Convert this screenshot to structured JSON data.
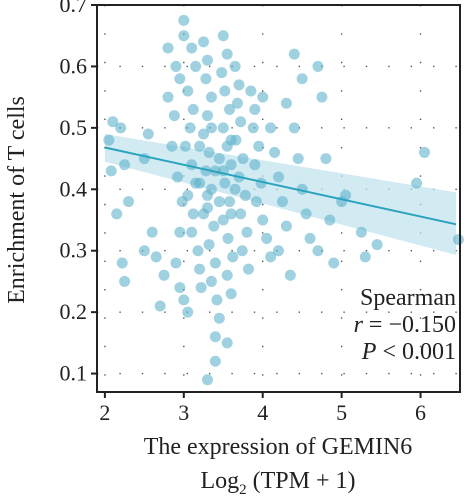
{
  "chart_data": {
    "type": "scatter",
    "xlabel": "The expression of GEMIN6",
    "xlabel_line2": {
      "prefix": "Log",
      "subscript": "2",
      "suffix": " (TPM + 1)"
    },
    "ylabel": "Enrichment of T cells",
    "xlim": [
      1.9,
      6.5
    ],
    "ylim": [
      0.07,
      0.7
    ],
    "xticks": [
      2,
      3,
      4,
      5,
      6
    ],
    "yticks": [
      0.1,
      0.2,
      0.3,
      0.4,
      0.5,
      0.6,
      0.7
    ],
    "xtick_labels": [
      "2",
      "3",
      "4",
      "5",
      "6"
    ],
    "ytick_labels": [
      "0.1",
      "0.2",
      "0.3",
      "0.4",
      "0.5",
      "0.6",
      "0.7"
    ],
    "grid": "dotted",
    "point_color": "#5fb3cb",
    "line_color": "#2aa3bf",
    "band_color": "#bfe2ec",
    "regression": {
      "x": [
        2.0,
        6.45
      ],
      "y": [
        0.468,
        0.343
      ],
      "ci_upper": [
        0.49,
        0.395
      ],
      "ci_lower": [
        0.445,
        0.293
      ]
    },
    "stats": {
      "method": "Spearman",
      "r_symbol": "r",
      "r_value": " = −0.150",
      "p_symbol": "P",
      "p_value": " < 0.001"
    },
    "points": [
      [
        3.0,
        0.675
      ],
      [
        2.05,
        0.48
      ],
      [
        2.1,
        0.51
      ],
      [
        2.08,
        0.43
      ],
      [
        2.2,
        0.5
      ],
      [
        2.25,
        0.44
      ],
      [
        2.15,
        0.36
      ],
      [
        2.3,
        0.38
      ],
      [
        2.22,
        0.28
      ],
      [
        2.25,
        0.25
      ],
      [
        2.5,
        0.45
      ],
      [
        2.55,
        0.49
      ],
      [
        2.6,
        0.33
      ],
      [
        2.65,
        0.29
      ],
      [
        2.5,
        0.3
      ],
      [
        2.7,
        0.21
      ],
      [
        2.75,
        0.26
      ],
      [
        2.8,
        0.55
      ],
      [
        2.9,
        0.6
      ],
      [
        2.95,
        0.58
      ],
      [
        2.88,
        0.52
      ],
      [
        2.85,
        0.47
      ],
      [
        2.92,
        0.42
      ],
      [
        2.98,
        0.38
      ],
      [
        2.95,
        0.33
      ],
      [
        2.9,
        0.28
      ],
      [
        2.95,
        0.24
      ],
      [
        3.0,
        0.22
      ],
      [
        3.05,
        0.2
      ],
      [
        3.1,
        0.63
      ],
      [
        3.15,
        0.6
      ],
      [
        3.05,
        0.56
      ],
      [
        3.12,
        0.53
      ],
      [
        3.08,
        0.5
      ],
      [
        3.02,
        0.47
      ],
      [
        3.1,
        0.44
      ],
      [
        3.15,
        0.41
      ],
      [
        3.05,
        0.39
      ],
      [
        3.12,
        0.36
      ],
      [
        3.1,
        0.33
      ],
      [
        3.18,
        0.3
      ],
      [
        3.2,
        0.27
      ],
      [
        3.22,
        0.24
      ],
      [
        3.25,
        0.64
      ],
      [
        3.3,
        0.61
      ],
      [
        3.28,
        0.58
      ],
      [
        3.35,
        0.55
      ],
      [
        3.3,
        0.52
      ],
      [
        3.25,
        0.49
      ],
      [
        3.32,
        0.46
      ],
      [
        3.28,
        0.43
      ],
      [
        3.35,
        0.4
      ],
      [
        3.3,
        0.37
      ],
      [
        3.38,
        0.34
      ],
      [
        3.32,
        0.31
      ],
      [
        3.4,
        0.28
      ],
      [
        3.35,
        0.25
      ],
      [
        3.42,
        0.22
      ],
      [
        3.45,
        0.19
      ],
      [
        3.5,
        0.65
      ],
      [
        3.55,
        0.62
      ],
      [
        3.48,
        0.59
      ],
      [
        3.52,
        0.56
      ],
      [
        3.58,
        0.53
      ],
      [
        3.5,
        0.5
      ],
      [
        3.55,
        0.47
      ],
      [
        3.6,
        0.44
      ],
      [
        3.52,
        0.41
      ],
      [
        3.58,
        0.38
      ],
      [
        3.5,
        0.35
      ],
      [
        3.56,
        0.32
      ],
      [
        3.62,
        0.29
      ],
      [
        3.55,
        0.26
      ],
      [
        3.6,
        0.23
      ],
      [
        3.65,
        0.6
      ],
      [
        3.7,
        0.57
      ],
      [
        3.68,
        0.54
      ],
      [
        3.72,
        0.51
      ],
      [
        3.66,
        0.48
      ],
      [
        3.75,
        0.45
      ],
      [
        3.7,
        0.42
      ],
      [
        3.78,
        0.39
      ],
      [
        3.72,
        0.36
      ],
      [
        3.8,
        0.33
      ],
      [
        3.74,
        0.3
      ],
      [
        3.82,
        0.27
      ],
      [
        3.85,
        0.56
      ],
      [
        3.9,
        0.53
      ],
      [
        3.88,
        0.5
      ],
      [
        3.95,
        0.47
      ],
      [
        3.9,
        0.44
      ],
      [
        3.98,
        0.41
      ],
      [
        3.92,
        0.38
      ],
      [
        4.0,
        0.35
      ],
      [
        4.05,
        0.32
      ],
      [
        4.1,
        0.29
      ],
      [
        4.0,
        0.55
      ],
      [
        4.1,
        0.5
      ],
      [
        4.15,
        0.46
      ],
      [
        4.2,
        0.42
      ],
      [
        4.25,
        0.38
      ],
      [
        4.3,
        0.34
      ],
      [
        4.2,
        0.3
      ],
      [
        4.35,
        0.26
      ],
      [
        4.4,
        0.5
      ],
      [
        4.45,
        0.45
      ],
      [
        4.5,
        0.4
      ],
      [
        4.55,
        0.36
      ],
      [
        4.6,
        0.32
      ],
      [
        4.5,
        0.58
      ],
      [
        4.4,
        0.62
      ],
      [
        4.3,
        0.54
      ],
      [
        3.4,
        0.16
      ],
      [
        3.3,
        0.09
      ],
      [
        3.55,
        0.15
      ],
      [
        3.4,
        0.12
      ],
      [
        3.2,
        0.47
      ],
      [
        3.45,
        0.45
      ],
      [
        3.35,
        0.5
      ],
      [
        3.6,
        0.48
      ],
      [
        3.45,
        0.38
      ],
      [
        3.25,
        0.36
      ],
      [
        3.65,
        0.4
      ],
      [
        3.4,
        0.43
      ],
      [
        3.2,
        0.41
      ],
      [
        3.5,
        0.43
      ],
      [
        3.6,
        0.36
      ],
      [
        3.3,
        0.39
      ],
      [
        4.7,
        0.6
      ],
      [
        4.75,
        0.55
      ],
      [
        4.8,
        0.45
      ],
      [
        4.85,
        0.35
      ],
      [
        4.7,
        0.3
      ],
      [
        4.9,
        0.28
      ],
      [
        5.0,
        0.38
      ],
      [
        5.05,
        0.39
      ],
      [
        5.25,
        0.33
      ],
      [
        5.3,
        0.29
      ],
      [
        5.45,
        0.31
      ],
      [
        5.95,
        0.41
      ],
      [
        6.05,
        0.46
      ],
      [
        6.48,
        0.318
      ],
      [
        3.0,
        0.65
      ],
      [
        2.8,
        0.63
      ]
    ]
  }
}
